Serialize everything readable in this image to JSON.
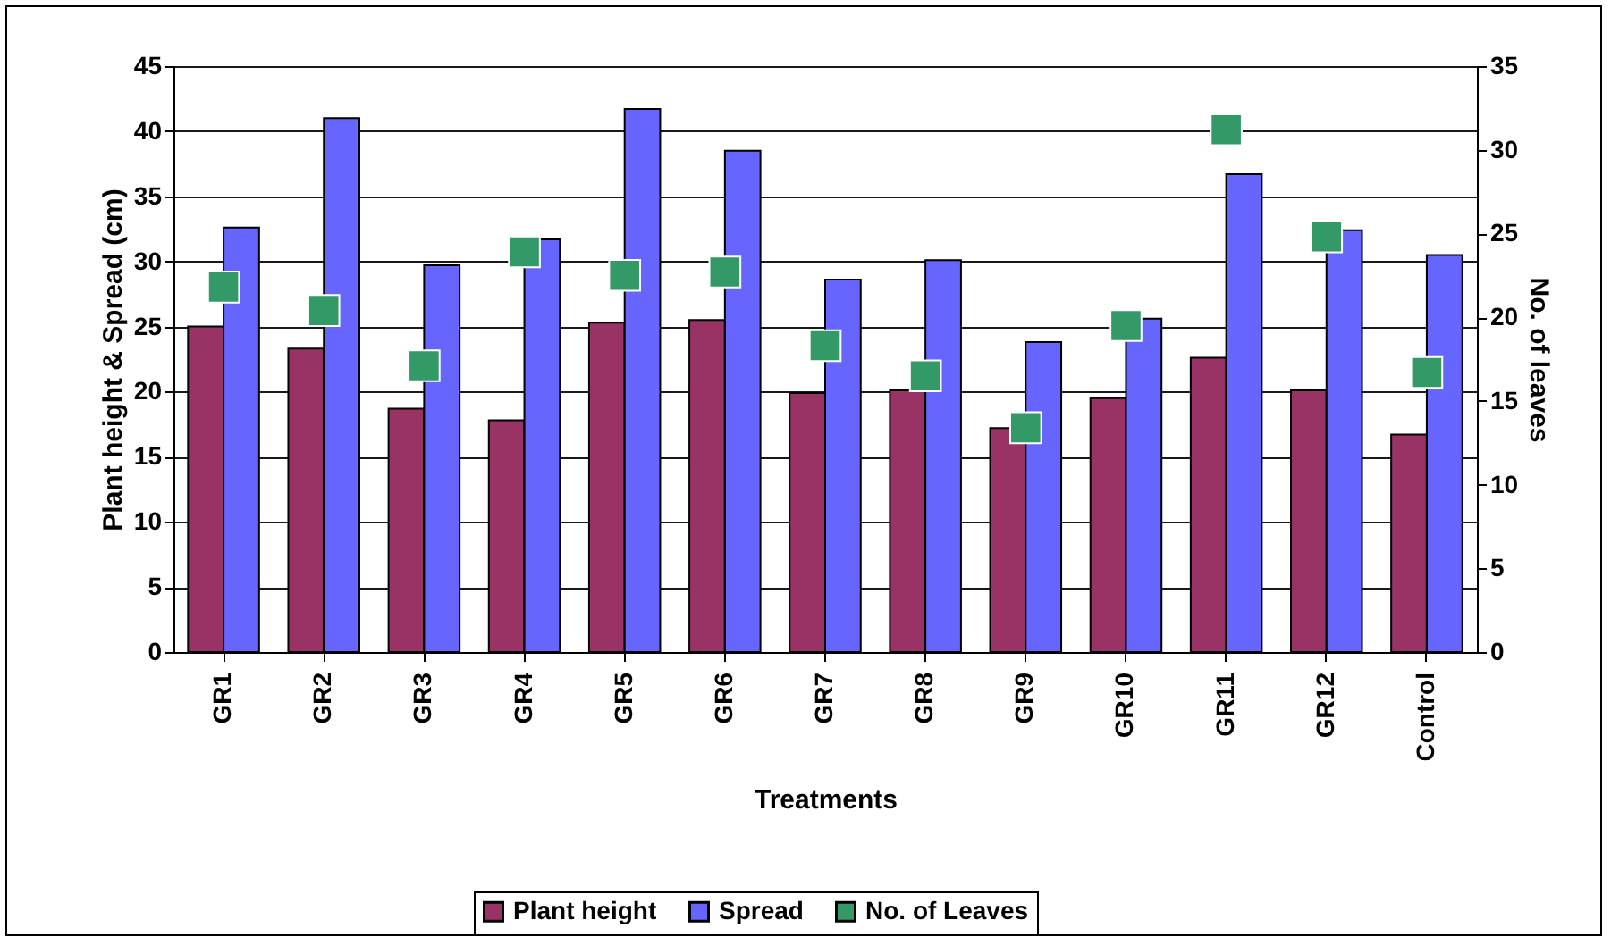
{
  "chart_data": {
    "type": "bar",
    "xlabel": "Treatments",
    "ylabel": "Plant height & Spread (cm)",
    "y2label": "No. of leaves",
    "categories": [
      "GR1",
      "GR2",
      "GR3",
      "GR4",
      "GR5",
      "GR6",
      "GR7",
      "GR8",
      "GR9",
      "GR10",
      "GR11",
      "GR12",
      "Control"
    ],
    "series": [
      {
        "name": "Plant height",
        "color": "#993366",
        "values": [
          25.0,
          23.3,
          18.7,
          17.8,
          25.3,
          25.5,
          19.9,
          20.1,
          17.2,
          19.5,
          22.6,
          20.1,
          16.7
        ]
      },
      {
        "name": "Spread",
        "color": "#6666ff",
        "values": [
          32.6,
          41.0,
          29.7,
          31.7,
          41.7,
          38.5,
          28.6,
          30.1,
          23.8,
          25.6,
          36.7,
          32.4,
          30.5
        ]
      },
      {
        "name": "No. of Leaves",
        "color": "#339966",
        "type": "scatter",
        "axis": "y2",
        "values": [
          21.8,
          20.4,
          17.1,
          23.9,
          22.5,
          22.7,
          18.3,
          16.5,
          13.4,
          19.5,
          31.2,
          24.8,
          16.7
        ]
      }
    ],
    "ylim": [
      0,
      45
    ],
    "yticks": [
      0,
      5,
      10,
      15,
      20,
      25,
      30,
      35,
      40,
      45
    ],
    "y2lim": [
      0,
      35
    ],
    "y2ticks": [
      0,
      5,
      10,
      15,
      20,
      25,
      30,
      35
    ],
    "grid": "y",
    "legend": "bottom",
    "marker": "square"
  }
}
